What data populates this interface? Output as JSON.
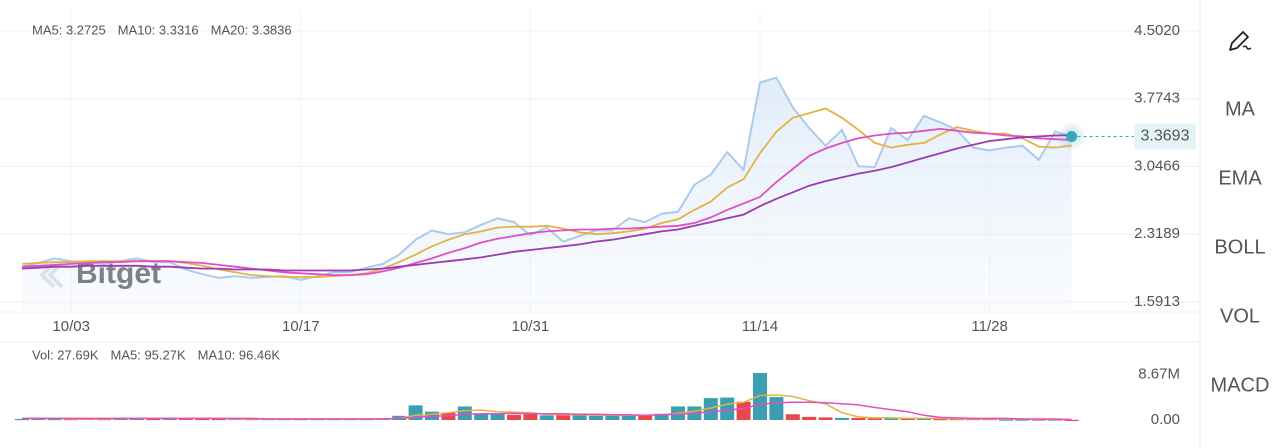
{
  "chart_data": [
    {
      "type": "line",
      "categories": [
        null,
        null,
        null,
        "10/03",
        null,
        null,
        null,
        null,
        null,
        null,
        null,
        null,
        null,
        null,
        null,
        null,
        null,
        "10/17",
        null,
        null,
        null,
        null,
        null,
        null,
        null,
        null,
        null,
        null,
        null,
        null,
        null,
        "10/31",
        null,
        null,
        null,
        null,
        null,
        null,
        null,
        null,
        null,
        null,
        null,
        null,
        null,
        "11/14",
        null,
        null,
        null,
        null,
        null,
        null,
        null,
        null,
        null,
        null,
        null,
        null,
        null,
        "11/28",
        null,
        null,
        null,
        null,
        null
      ],
      "ylim": [
        1.5913,
        4.502
      ],
      "yticks": [
        {
          "value": 1.5913,
          "label": "1.5913"
        },
        {
          "value": 2.3189,
          "label": "2.3189"
        },
        {
          "value": 3.0466,
          "label": "3.0466"
        },
        {
          "value": 3.7743,
          "label": "3.7743"
        },
        {
          "value": 4.502,
          "label": "4.5020"
        }
      ],
      "grid": true,
      "watermark": "Bitget",
      "last_label": "3.3693",
      "series": [
        {
          "color": "#a9cbec",
          "area": true,
          "values": [
            1.97,
            2.01,
            2.06,
            2.03,
            2.02,
            2.0,
            2.03,
            2.06,
            2.02,
            2.02,
            1.94,
            1.89,
            1.85,
            1.87,
            1.85,
            1.86,
            1.87,
            1.83,
            1.87,
            1.91,
            1.91,
            1.96,
            2.0,
            2.1,
            2.26,
            2.36,
            2.32,
            2.34,
            2.42,
            2.49,
            2.45,
            2.31,
            2.39,
            2.24,
            2.3,
            2.36,
            2.36,
            2.49,
            2.45,
            2.54,
            2.56,
            2.85,
            2.96,
            3.2,
            3.01,
            3.95,
            4.0,
            3.68,
            3.46,
            3.27,
            3.44,
            3.05,
            3.04,
            3.46,
            3.33,
            3.59,
            3.52,
            3.44,
            3.25,
            3.22,
            3.25,
            3.27,
            3.12,
            3.42,
            3.3693
          ]
        },
        {
          "name": "MA5: 3.2725",
          "color": "#e3b341",
          "values": [
            2.0,
            2.01,
            2.02,
            2.02,
            2.03,
            2.03,
            2.03,
            2.03,
            2.03,
            2.03,
            2.01,
            1.98,
            1.94,
            1.91,
            1.88,
            1.87,
            1.86,
            1.86,
            1.86,
            1.87,
            1.88,
            1.9,
            1.95,
            2.02,
            2.1,
            2.19,
            2.26,
            2.32,
            2.35,
            2.39,
            2.4,
            2.4,
            2.41,
            2.38,
            2.34,
            2.32,
            2.33,
            2.35,
            2.38,
            2.44,
            2.48,
            2.58,
            2.67,
            2.82,
            2.91,
            3.19,
            3.42,
            3.57,
            3.62,
            3.67,
            3.57,
            3.44,
            3.3,
            3.25,
            3.28,
            3.3,
            3.39,
            3.47,
            3.43,
            3.4,
            3.4,
            3.35,
            3.26,
            3.25,
            3.2725
          ]
        },
        {
          "name": "MA10: 3.3316",
          "color": "#e04fc4",
          "values": [
            1.97,
            1.98,
            1.99,
            2.0,
            2.01,
            2.02,
            2.02,
            2.03,
            2.03,
            2.03,
            2.02,
            2.01,
            1.99,
            1.97,
            1.95,
            1.93,
            1.91,
            1.9,
            1.89,
            1.88,
            1.88,
            1.89,
            1.92,
            1.96,
            2.01,
            2.06,
            2.12,
            2.17,
            2.23,
            2.27,
            2.3,
            2.33,
            2.35,
            2.36,
            2.37,
            2.37,
            2.38,
            2.38,
            2.39,
            2.4,
            2.41,
            2.44,
            2.5,
            2.58,
            2.65,
            2.72,
            2.88,
            3.02,
            3.16,
            3.24,
            3.3,
            3.35,
            3.38,
            3.4,
            3.41,
            3.43,
            3.45,
            3.43,
            3.41,
            3.4,
            3.38,
            3.37,
            3.35,
            3.34,
            3.3316
          ]
        },
        {
          "name": "MA20: 3.3836",
          "color": "#9b3bb0",
          "values": [
            1.95,
            1.96,
            1.97,
            1.97,
            1.98,
            1.98,
            1.98,
            1.98,
            1.97,
            1.97,
            1.96,
            1.95,
            1.95,
            1.94,
            1.94,
            1.94,
            1.93,
            1.93,
            1.93,
            1.93,
            1.93,
            1.94,
            1.95,
            1.97,
            1.99,
            2.01,
            2.03,
            2.05,
            2.07,
            2.1,
            2.13,
            2.15,
            2.17,
            2.19,
            2.21,
            2.24,
            2.26,
            2.29,
            2.32,
            2.35,
            2.37,
            2.41,
            2.45,
            2.49,
            2.53,
            2.62,
            2.7,
            2.77,
            2.84,
            2.89,
            2.93,
            2.97,
            3.0,
            3.04,
            3.09,
            3.14,
            3.19,
            3.24,
            3.28,
            3.32,
            3.34,
            3.36,
            3.37,
            3.38,
            3.3836
          ]
        }
      ]
    },
    {
      "type": "bar",
      "legend_label": "Vol: 27.69K",
      "legend_color": "#e3b341",
      "up_color": "#3a9fb3",
      "down_color": "#e8474c",
      "ylim": [
        0,
        9.2
      ],
      "yticks": [
        {
          "value": 0,
          "label": "0.00"
        },
        {
          "value": 8.67,
          "label": "8.67M"
        }
      ],
      "values": [
        0.2,
        0.3,
        0.2,
        0.2,
        0.3,
        0.2,
        0.3,
        0.3,
        0.2,
        0.4,
        0.3,
        0.2,
        0.2,
        0.3,
        0.2,
        0.2,
        0.2,
        0.2,
        0.2,
        0.2,
        0.2,
        0.2,
        0.3,
        0.8,
        2.8,
        1.6,
        1.4,
        2.6,
        1.1,
        1.2,
        1.0,
        1.1,
        0.9,
        1.0,
        0.9,
        0.8,
        0.9,
        0.9,
        1.0,
        1.2,
        2.6,
        2.6,
        4.2,
        4.3,
        3.5,
        9.0,
        4.4,
        1.1,
        0.6,
        0.5,
        0.4,
        0.4,
        0.3,
        0.3,
        0.3,
        0.3,
        0.2,
        0.2,
        0.2,
        0.2,
        0.1,
        0.1,
        0.1,
        0.1,
        0.02769
      ],
      "lines": [
        {
          "name": "MA5: 95.27K",
          "color": "#e3b341",
          "values": [
            0.3,
            0.3,
            0.3,
            0.2,
            0.2,
            0.2,
            0.3,
            0.3,
            0.3,
            0.3,
            0.3,
            0.3,
            0.3,
            0.2,
            0.2,
            0.2,
            0.2,
            0.2,
            0.2,
            0.2,
            0.2,
            0.2,
            0.2,
            0.3,
            0.9,
            1.1,
            1.4,
            1.8,
            1.9,
            1.6,
            1.5,
            1.4,
            1.1,
            1.0,
            1.0,
            0.9,
            0.9,
            0.9,
            0.9,
            1.0,
            1.3,
            1.7,
            2.3,
            3.0,
            3.4,
            4.7,
            4.8,
            4.5,
            3.7,
            3.1,
            1.4,
            0.6,
            0.4,
            0.4,
            0.3,
            0.3,
            0.3,
            0.2,
            0.2,
            0.2,
            0.2,
            0.2,
            0.1,
            0.1,
            0.09527
          ]
        },
        {
          "name": "MA10: 96.46K",
          "color": "#e04fc4",
          "values": [
            0.3,
            0.3,
            0.3,
            0.3,
            0.3,
            0.3,
            0.3,
            0.3,
            0.3,
            0.3,
            0.3,
            0.3,
            0.3,
            0.3,
            0.3,
            0.2,
            0.2,
            0.2,
            0.2,
            0.2,
            0.2,
            0.2,
            0.2,
            0.3,
            0.5,
            0.7,
            0.8,
            1.1,
            1.2,
            1.2,
            1.3,
            1.2,
            1.2,
            1.2,
            1.1,
            1.1,
            1.0,
            1.0,
            0.9,
            1.0,
            1.1,
            1.3,
            1.6,
            1.9,
            2.2,
            3.0,
            3.3,
            3.4,
            3.4,
            3.3,
            3.1,
            2.9,
            2.4,
            2.0,
            1.6,
            0.9,
            0.5,
            0.4,
            0.3,
            0.3,
            0.3,
            0.2,
            0.2,
            0.2,
            0.09646
          ]
        }
      ]
    }
  ],
  "toolbar": [
    {
      "label": "MA",
      "active": true
    },
    {
      "label": "EMA",
      "active": false
    },
    {
      "label": "BOLL",
      "active": false
    },
    {
      "label": "VOL",
      "active": true
    },
    {
      "label": "MACD",
      "active": false
    }
  ]
}
